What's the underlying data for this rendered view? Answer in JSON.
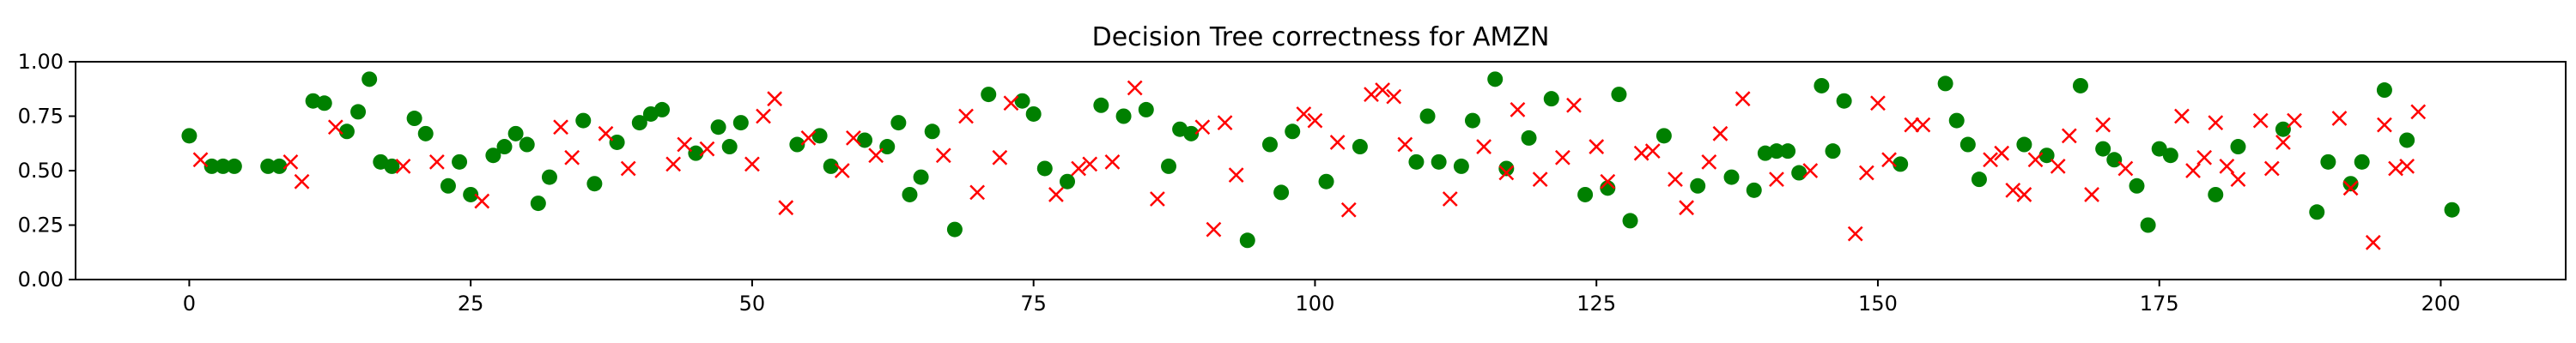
{
  "chart_data": {
    "type": "scatter",
    "title": "Decision Tree correctness for AMZN",
    "xlabel": "",
    "ylabel": "",
    "xlim": [
      -10.1,
      211.1
    ],
    "ylim": [
      0,
      1
    ],
    "grid": false,
    "legend": null,
    "x_ticks": [
      0,
      25,
      50,
      75,
      100,
      125,
      150,
      175,
      200
    ],
    "x_tick_labels": [
      "0",
      "25",
      "50",
      "75",
      "100",
      "125",
      "150",
      "175",
      "200"
    ],
    "y_ticks": [
      0,
      0.25,
      0.5,
      0.75,
      1
    ],
    "y_tick_labels": [
      "0.00",
      "0.25",
      "0.50",
      "0.75",
      "1.00"
    ],
    "series": [
      {
        "marker": "circle",
        "color": "#008000",
        "points": [
          [
            0,
            0.66
          ],
          [
            2,
            0.52
          ],
          [
            3,
            0.52
          ],
          [
            4,
            0.52
          ],
          [
            7,
            0.52
          ],
          [
            8,
            0.52
          ],
          [
            11,
            0.82
          ],
          [
            12,
            0.81
          ],
          [
            14,
            0.68
          ],
          [
            15,
            0.77
          ],
          [
            16,
            0.92
          ],
          [
            17,
            0.54
          ],
          [
            18,
            0.52
          ],
          [
            20,
            0.74
          ],
          [
            21,
            0.67
          ],
          [
            23,
            0.43
          ],
          [
            24,
            0.54
          ],
          [
            25,
            0.39
          ],
          [
            27,
            0.57
          ],
          [
            28,
            0.61
          ],
          [
            29,
            0.67
          ],
          [
            30,
            0.62
          ],
          [
            31,
            0.35
          ],
          [
            32,
            0.47
          ],
          [
            35,
            0.73
          ],
          [
            36,
            0.44
          ],
          [
            38,
            0.63
          ],
          [
            40,
            0.72
          ],
          [
            41,
            0.76
          ],
          [
            42,
            0.78
          ],
          [
            45,
            0.58
          ],
          [
            47,
            0.7
          ],
          [
            48,
            0.61
          ],
          [
            49,
            0.72
          ],
          [
            54,
            0.62
          ],
          [
            56,
            0.66
          ],
          [
            57,
            0.52
          ],
          [
            60,
            0.64
          ],
          [
            62,
            0.61
          ],
          [
            63,
            0.72
          ],
          [
            64,
            0.39
          ],
          [
            65,
            0.47
          ],
          [
            66,
            0.68
          ],
          [
            68,
            0.23
          ],
          [
            71,
            0.85
          ],
          [
            74,
            0.82
          ],
          [
            75,
            0.76
          ],
          [
            76,
            0.51
          ],
          [
            78,
            0.45
          ],
          [
            81,
            0.8
          ],
          [
            83,
            0.75
          ],
          [
            85,
            0.78
          ],
          [
            87,
            0.52
          ],
          [
            88,
            0.69
          ],
          [
            89,
            0.67
          ],
          [
            94,
            0.18
          ],
          [
            96,
            0.62
          ],
          [
            97,
            0.4
          ],
          [
            98,
            0.68
          ],
          [
            101,
            0.45
          ],
          [
            104,
            0.61
          ],
          [
            109,
            0.54
          ],
          [
            110,
            0.75
          ],
          [
            111,
            0.54
          ],
          [
            113,
            0.52
          ],
          [
            114,
            0.73
          ],
          [
            116,
            0.92
          ],
          [
            117,
            0.51
          ],
          [
            119,
            0.65
          ],
          [
            121,
            0.83
          ],
          [
            124,
            0.39
          ],
          [
            126,
            0.42
          ],
          [
            127,
            0.85
          ],
          [
            128,
            0.27
          ],
          [
            131,
            0.66
          ],
          [
            134,
            0.43
          ],
          [
            137,
            0.47
          ],
          [
            139,
            0.41
          ],
          [
            140,
            0.58
          ],
          [
            141,
            0.59
          ],
          [
            142,
            0.59
          ],
          [
            143,
            0.49
          ],
          [
            145,
            0.89
          ],
          [
            146,
            0.59
          ],
          [
            147,
            0.82
          ],
          [
            152,
            0.53
          ],
          [
            156,
            0.9
          ],
          [
            157,
            0.73
          ],
          [
            158,
            0.62
          ],
          [
            159,
            0.46
          ],
          [
            163,
            0.62
          ],
          [
            165,
            0.57
          ],
          [
            168,
            0.89
          ],
          [
            170,
            0.6
          ],
          [
            171,
            0.55
          ],
          [
            173,
            0.43
          ],
          [
            174,
            0.25
          ],
          [
            175,
            0.6
          ],
          [
            176,
            0.57
          ],
          [
            180,
            0.39
          ],
          [
            182,
            0.61
          ],
          [
            186,
            0.69
          ],
          [
            189,
            0.31
          ],
          [
            190,
            0.54
          ],
          [
            192,
            0.44
          ],
          [
            193,
            0.54
          ],
          [
            195,
            0.87
          ],
          [
            197,
            0.64
          ],
          [
            201,
            0.32
          ]
        ]
      },
      {
        "marker": "x",
        "color": "#ff0000",
        "points": [
          [
            1,
            0.55
          ],
          [
            9,
            0.54
          ],
          [
            10,
            0.45
          ],
          [
            13,
            0.7
          ],
          [
            19,
            0.52
          ],
          [
            22,
            0.54
          ],
          [
            26,
            0.36
          ],
          [
            33,
            0.7
          ],
          [
            34,
            0.56
          ],
          [
            37,
            0.67
          ],
          [
            39,
            0.51
          ],
          [
            43,
            0.53
          ],
          [
            44,
            0.62
          ],
          [
            46,
            0.6
          ],
          [
            50,
            0.53
          ],
          [
            51,
            0.75
          ],
          [
            52,
            0.83
          ],
          [
            53,
            0.33
          ],
          [
            55,
            0.65
          ],
          [
            58,
            0.5
          ],
          [
            59,
            0.65
          ],
          [
            61,
            0.57
          ],
          [
            67,
            0.57
          ],
          [
            69,
            0.75
          ],
          [
            70,
            0.4
          ],
          [
            72,
            0.56
          ],
          [
            73,
            0.81
          ],
          [
            77,
            0.39
          ],
          [
            79,
            0.51
          ],
          [
            80,
            0.53
          ],
          [
            82,
            0.54
          ],
          [
            84,
            0.88
          ],
          [
            86,
            0.37
          ],
          [
            90,
            0.7
          ],
          [
            91,
            0.23
          ],
          [
            92,
            0.72
          ],
          [
            93,
            0.48
          ],
          [
            99,
            0.76
          ],
          [
            100,
            0.73
          ],
          [
            102,
            0.63
          ],
          [
            103,
            0.32
          ],
          [
            105,
            0.85
          ],
          [
            106,
            0.87
          ],
          [
            107,
            0.84
          ],
          [
            108,
            0.62
          ],
          [
            112,
            0.37
          ],
          [
            115,
            0.61
          ],
          [
            117,
            0.49
          ],
          [
            118,
            0.78
          ],
          [
            120,
            0.46
          ],
          [
            122,
            0.56
          ],
          [
            123,
            0.8
          ],
          [
            125,
            0.61
          ],
          [
            126,
            0.45
          ],
          [
            129,
            0.58
          ],
          [
            130,
            0.59
          ],
          [
            132,
            0.46
          ],
          [
            133,
            0.33
          ],
          [
            135,
            0.54
          ],
          [
            136,
            0.67
          ],
          [
            138,
            0.83
          ],
          [
            141,
            0.46
          ],
          [
            144,
            0.5
          ],
          [
            148,
            0.21
          ],
          [
            149,
            0.49
          ],
          [
            150,
            0.81
          ],
          [
            151,
            0.55
          ],
          [
            153,
            0.71
          ],
          [
            154,
            0.71
          ],
          [
            160,
            0.55
          ],
          [
            161,
            0.58
          ],
          [
            162,
            0.41
          ],
          [
            163,
            0.39
          ],
          [
            164,
            0.55
          ],
          [
            166,
            0.52
          ],
          [
            167,
            0.66
          ],
          [
            169,
            0.39
          ],
          [
            170,
            0.71
          ],
          [
            172,
            0.51
          ],
          [
            177,
            0.75
          ],
          [
            178,
            0.5
          ],
          [
            179,
            0.56
          ],
          [
            180,
            0.72
          ],
          [
            181,
            0.52
          ],
          [
            182,
            0.46
          ],
          [
            184,
            0.73
          ],
          [
            185,
            0.51
          ],
          [
            186,
            0.63
          ],
          [
            187,
            0.73
          ],
          [
            191,
            0.74
          ],
          [
            192,
            0.42
          ],
          [
            194,
            0.17
          ],
          [
            195,
            0.71
          ],
          [
            197,
            0.52
          ],
          [
            198,
            0.77
          ],
          [
            196,
            0.51
          ]
        ]
      }
    ]
  }
}
